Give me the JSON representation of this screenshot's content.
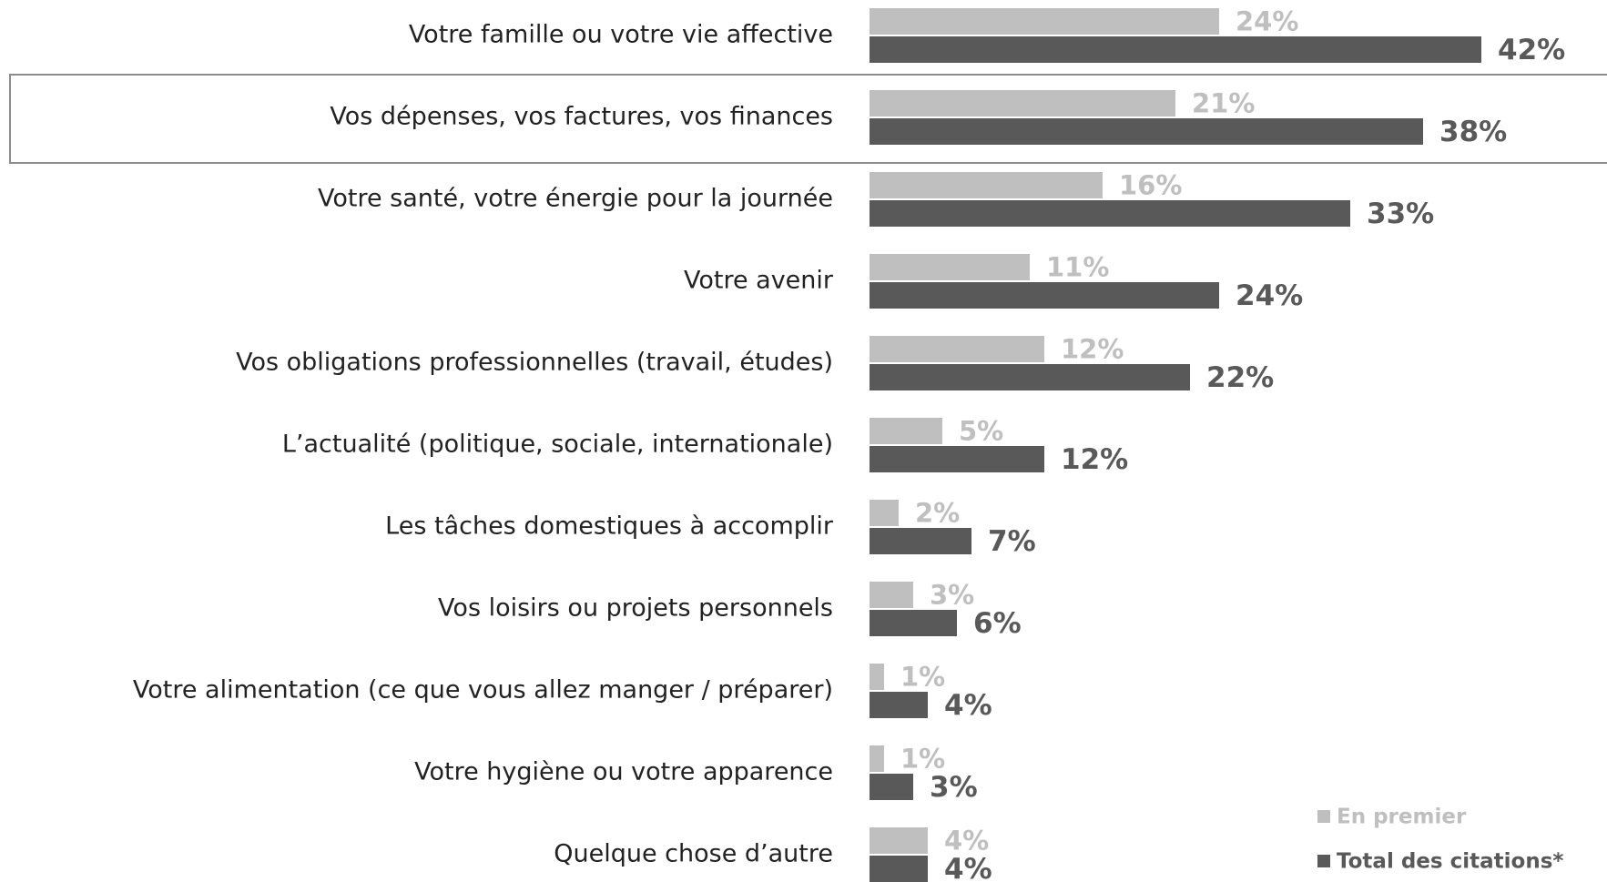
{
  "chart_data": {
    "type": "hbar",
    "categories": [
      "Votre famille ou votre vie affective",
      "Vos dépenses, vos factures, vos finances",
      "Votre santé, votre énergie pour la journée",
      "Votre avenir",
      "Vos obligations professionnelles (travail, études)",
      "L’actualité (politique, sociale, internationale)",
      "Les tâches domestiques à accomplir",
      "Vos loisirs ou projets personnels",
      "Votre alimentation (ce que vous allez manger / préparer)",
      "Votre hygiène ou votre apparence",
      "Quelque chose d’autre"
    ],
    "series": [
      {
        "name": "En premier",
        "color": "#bfbfbf",
        "values": [
          24,
          21,
          16,
          11,
          12,
          5,
          2,
          3,
          1,
          1,
          4
        ],
        "value_labels": [
          "24%",
          "21%",
          "16%",
          "11%",
          "12%",
          "5%",
          "2%",
          "3%",
          "1%",
          "1%",
          "4%"
        ]
      },
      {
        "name": "Total des citations*",
        "color": "#595959",
        "values": [
          42,
          38,
          33,
          24,
          22,
          12,
          7,
          6,
          4,
          3,
          4
        ],
        "value_labels": [
          "42%",
          "38%",
          "33%",
          "24%",
          "22%",
          "12%",
          "7%",
          "6%",
          "4%",
          "3%",
          "4%"
        ]
      }
    ],
    "legend": "bottom-right"
  }
}
